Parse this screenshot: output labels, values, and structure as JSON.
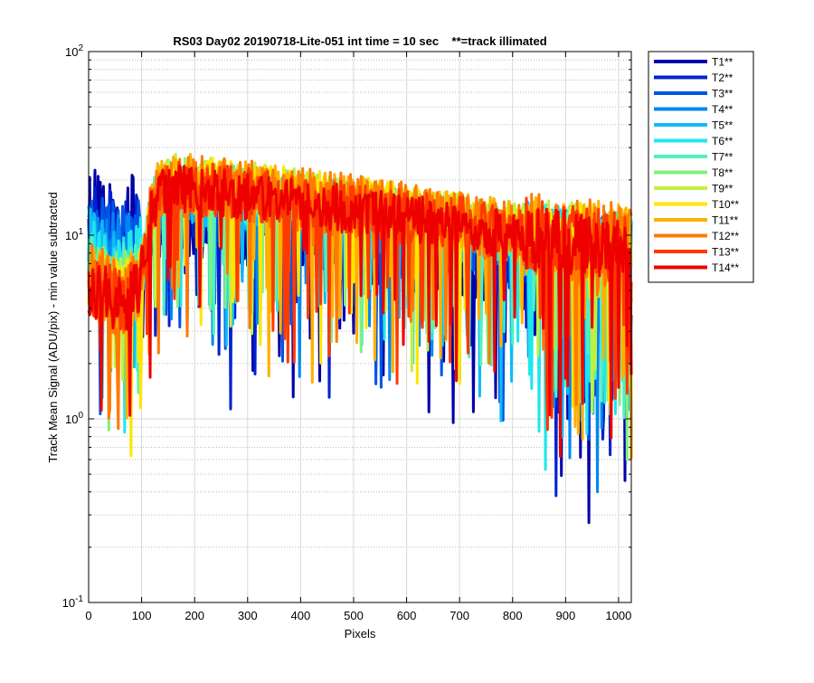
{
  "chart_data": {
    "type": "line",
    "title": "RS03 Day02 20190718-Lite-051 int time = 10 sec    **=track illimated",
    "xlabel": "Pixels",
    "ylabel": "Track Mean Signal (ADU/pix) - min value subtracted",
    "xlim": [
      0,
      1024
    ],
    "ylim": [
      0.1,
      100
    ],
    "yscale": "log",
    "grid": true,
    "minor_grid": true,
    "legend_position": "outside-top-right",
    "x_ticks": [
      0,
      100,
      200,
      300,
      400,
      500,
      600,
      700,
      800,
      900,
      1000
    ],
    "x_tick_labels": [
      "0",
      "100",
      "200",
      "300",
      "400",
      "500",
      "600",
      "700",
      "800",
      "900",
      "1000"
    ],
    "y_ticks": [
      0.1,
      1,
      10,
      100
    ],
    "y_tick_labels": [
      {
        "base": "10",
        "exp": "-1"
      },
      {
        "base": "10",
        "exp": "0"
      },
      {
        "base": "10",
        "exp": "1"
      },
      {
        "base": "10",
        "exp": "2"
      }
    ],
    "profile_points": [
      {
        "x": 0,
        "y": 6.5
      },
      {
        "x": 20,
        "y": 6.0
      },
      {
        "x": 60,
        "y": 5.5
      },
      {
        "x": 95,
        "y": 6.0
      },
      {
        "x": 108,
        "y": 10.0
      },
      {
        "x": 118,
        "y": 15.0
      },
      {
        "x": 130,
        "y": 19.0
      },
      {
        "x": 160,
        "y": 21.0
      },
      {
        "x": 300,
        "y": 19.0
      },
      {
        "x": 500,
        "y": 16.0
      },
      {
        "x": 700,
        "y": 13.0
      },
      {
        "x": 850,
        "y": 11.0
      },
      {
        "x": 1024,
        "y": 9.5
      }
    ],
    "series": [
      {
        "name": "T1**",
        "color": "#0000AA",
        "scale": 0.6,
        "noise": 0.55,
        "pre_scale": 1.8
      },
      {
        "name": "T2**",
        "color": "#0022CC",
        "scale": 0.66,
        "noise": 0.5,
        "pre_scale": 1.6
      },
      {
        "name": "T3**",
        "color": "#0055E6",
        "scale": 0.72,
        "noise": 0.45,
        "pre_scale": 1.5
      },
      {
        "name": "T4**",
        "color": "#0088F0",
        "scale": 0.78,
        "noise": 0.4,
        "pre_scale": 1.4
      },
      {
        "name": "T5**",
        "color": "#10BBF5",
        "scale": 0.82,
        "noise": 0.4,
        "pre_scale": 1.3
      },
      {
        "name": "T6**",
        "color": "#20E6EE",
        "scale": 0.86,
        "noise": 0.35,
        "pre_scale": 1.2
      },
      {
        "name": "T7**",
        "color": "#50F0C0",
        "scale": 0.9,
        "noise": 0.32,
        "pre_scale": 1.1
      },
      {
        "name": "T8**",
        "color": "#80F080",
        "scale": 0.94,
        "noise": 0.3,
        "pre_scale": 1.0
      },
      {
        "name": "T9**",
        "color": "#C0F040",
        "scale": 0.98,
        "noise": 0.3,
        "pre_scale": 0.95
      },
      {
        "name": "T10**",
        "color": "#FFE600",
        "scale": 0.96,
        "noise": 0.32,
        "pre_scale": 0.9
      },
      {
        "name": "T11**",
        "color": "#FFB000",
        "scale": 0.92,
        "noise": 0.38,
        "pre_scale": 0.85
      },
      {
        "name": "T12**",
        "color": "#FF7A00",
        "scale": 0.9,
        "noise": 0.4,
        "pre_scale": 0.85
      },
      {
        "name": "T13**",
        "color": "#FF3A00",
        "scale": 0.88,
        "noise": 0.35,
        "pre_scale": 0.8
      },
      {
        "name": "T14**",
        "color": "#EE0000",
        "scale": 0.86,
        "noise": 0.3,
        "pre_scale": 0.8
      }
    ]
  }
}
